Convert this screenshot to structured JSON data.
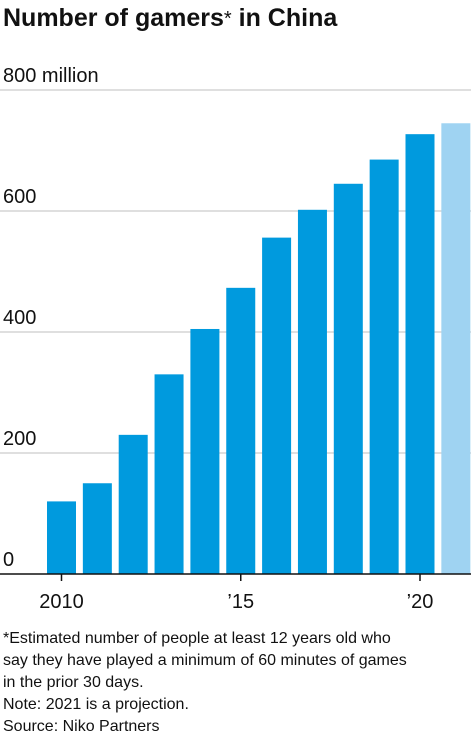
{
  "title": {
    "text": "Number of gamers",
    "mark": "*",
    "suffix": " in China"
  },
  "colors": {
    "bar": "#009ADE",
    "projection": "#9FD3F2",
    "grid": "#BFBFBF",
    "axis": "#111111"
  },
  "chart_data": {
    "type": "bar",
    "categories": [
      "2010",
      "2011",
      "2012",
      "2013",
      "2014",
      "2015",
      "2016",
      "2017",
      "2018",
      "2019",
      "2020",
      "2021"
    ],
    "values": [
      120,
      150,
      230,
      330,
      405,
      473,
      556,
      602,
      645,
      685,
      727,
      745
    ],
    "projected": [
      false,
      false,
      false,
      false,
      false,
      false,
      false,
      false,
      false,
      false,
      false,
      true
    ],
    "x_tick_labels": [
      {
        "category": "2010",
        "label": "2010"
      },
      {
        "category": "2015",
        "label": "’15"
      },
      {
        "category": "2020",
        "label": "’20"
      }
    ],
    "y_ticks": [
      0,
      200,
      400,
      600,
      800
    ],
    "y_tick_labels": [
      "0",
      "200",
      "400",
      "600",
      "800 million"
    ],
    "ylim": [
      0,
      800
    ],
    "grid": true,
    "xlabel": "",
    "ylabel": ""
  },
  "footnotes": {
    "estimate_1": "*Estimated number of people at least 12 years old who",
    "estimate_2": "say they have played a minimum of 60 minutes of games",
    "estimate_3": "in the prior 30 days.",
    "note": "Note: 2021 is a projection.",
    "source": "Source: Niko Partners"
  }
}
